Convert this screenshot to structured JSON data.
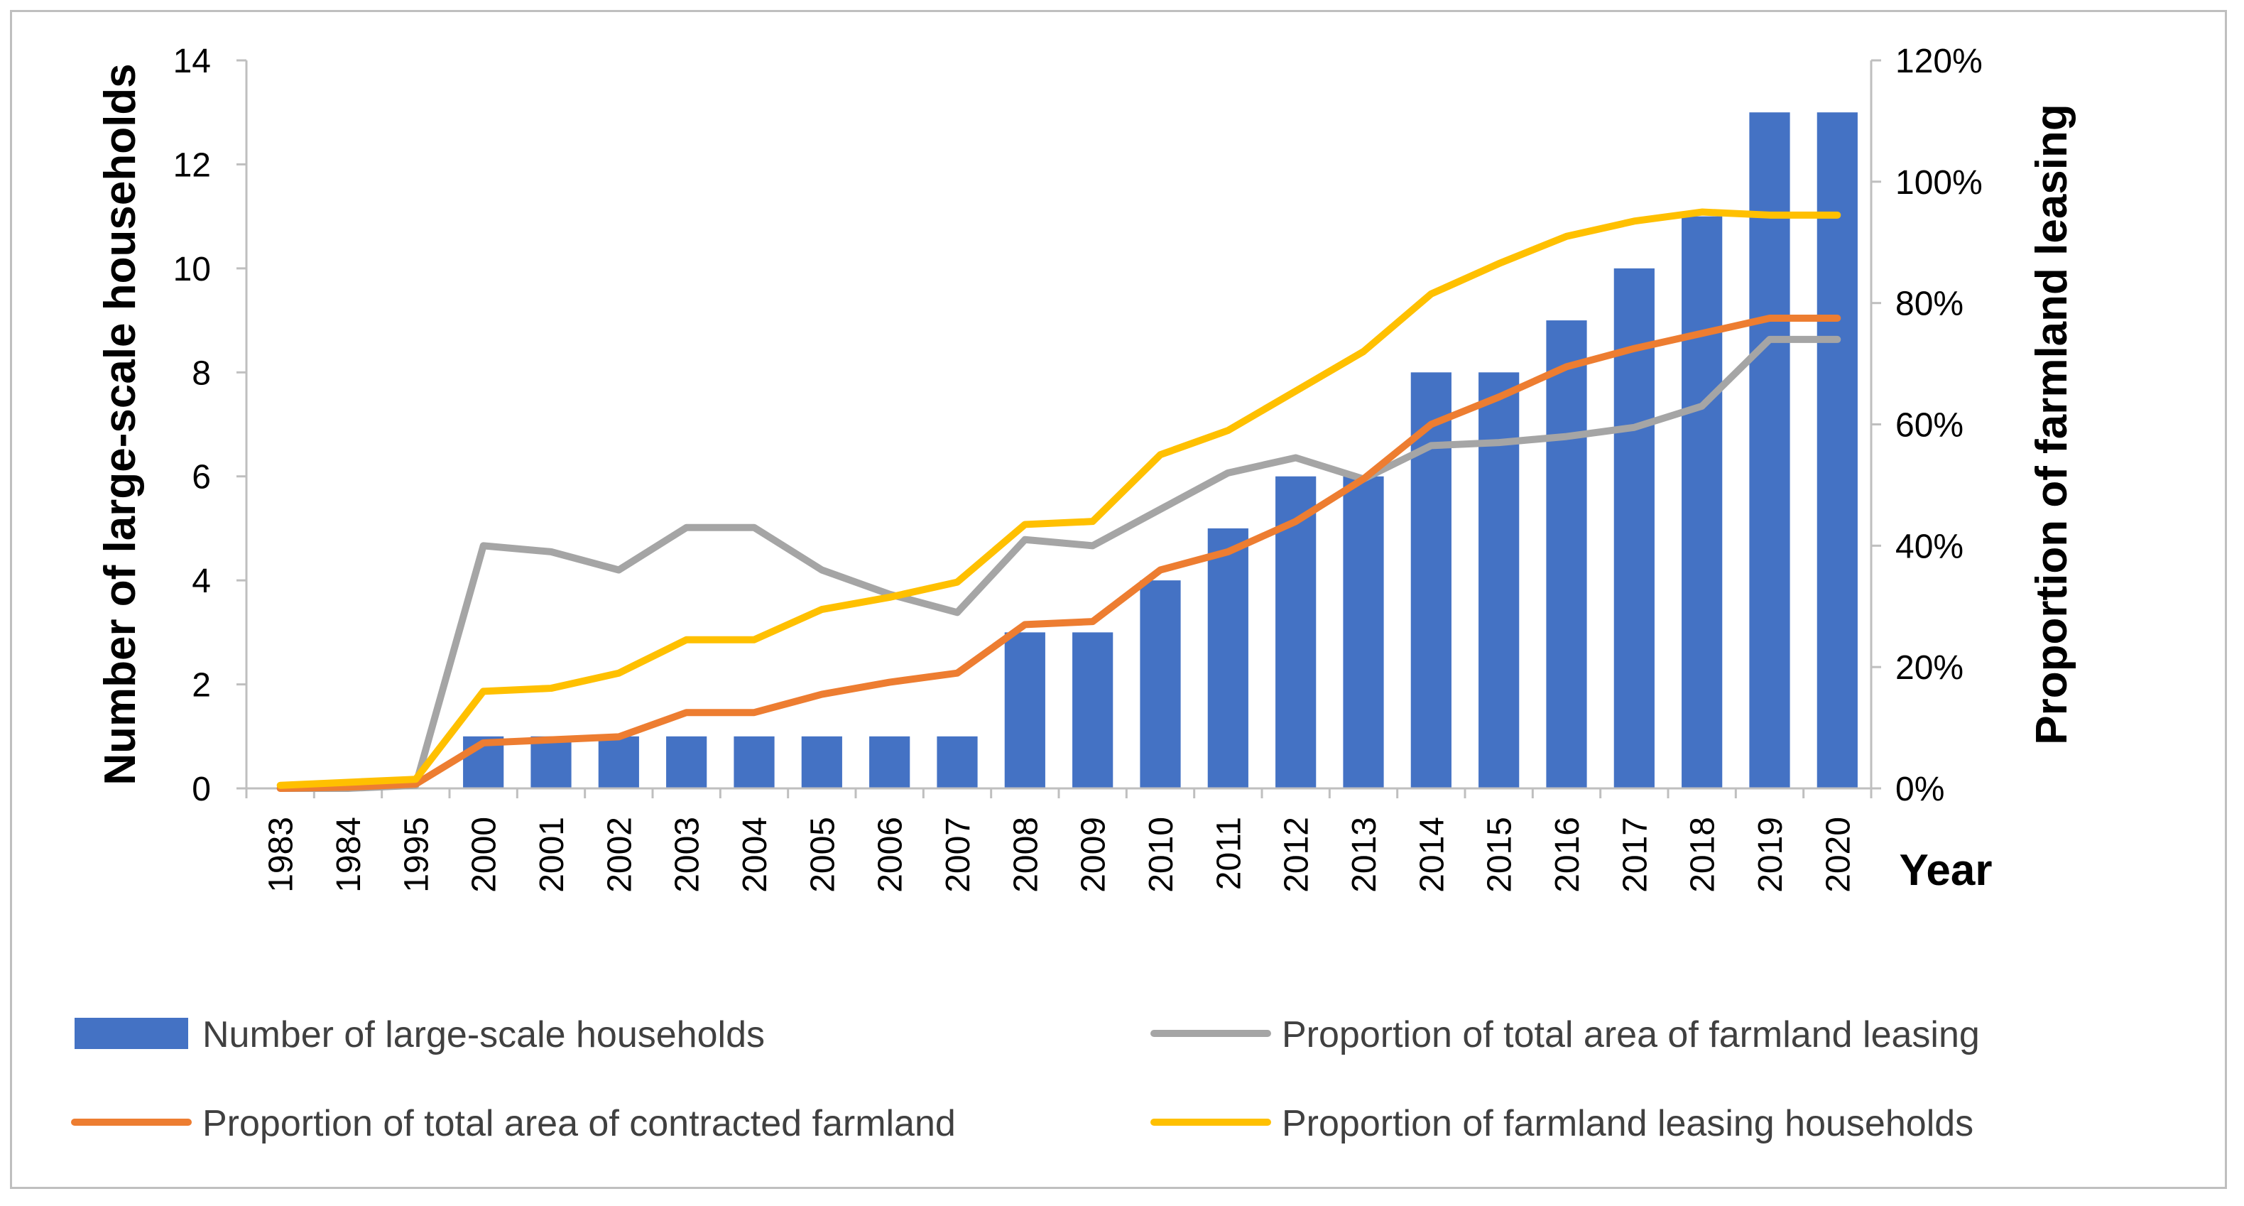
{
  "chart_data": {
    "type": "bar",
    "xlabel": "Year",
    "ylabel_left": "Number of large-scale households",
    "ylabel_right": "Proportion of farmland leasing",
    "categories": [
      "1983",
      "1984",
      "1995",
      "2000",
      "2001",
      "2002",
      "2003",
      "2004",
      "2005",
      "2006",
      "2007",
      "2008",
      "2009",
      "2010",
      "2011",
      "2012",
      "2013",
      "2014",
      "2015",
      "2016",
      "2017",
      "2018",
      "2019",
      "2020"
    ],
    "ylim_left": [
      0,
      14
    ],
    "yticks_left": [
      "0",
      "2",
      "4",
      "6",
      "8",
      "10",
      "12",
      "14"
    ],
    "ylim_right": [
      0,
      1.2
    ],
    "yticks_right": [
      "0%",
      "20%",
      "40%",
      "60%",
      "80%",
      "100%",
      "120%"
    ],
    "grid": false,
    "legend_position": "bottom",
    "series": [
      {
        "name": "Number of large-scale households",
        "kind": "bar",
        "axis": "left",
        "color": "#4472C4",
        "values": [
          0,
          0,
          0,
          1,
          1,
          1,
          1,
          1,
          1,
          1,
          1,
          3,
          3,
          4,
          5,
          6,
          6,
          8,
          8,
          9,
          10,
          11,
          13,
          13
        ]
      },
      {
        "name": "Proportion of total area of farmland leasing",
        "kind": "line",
        "axis": "right",
        "color": "#A5A5A5",
        "values": [
          0,
          0,
          0.005,
          0.4,
          0.39,
          0.36,
          0.43,
          0.43,
          0.36,
          0.32,
          0.29,
          0.41,
          0.4,
          0.46,
          0.52,
          0.545,
          0.51,
          0.565,
          0.57,
          0.58,
          0.595,
          0.63,
          0.74,
          0.74
        ]
      },
      {
        "name": "Proportion of total area of contracted farmland",
        "kind": "line",
        "axis": "right",
        "color": "#ED7D31",
        "values": [
          0,
          0.002,
          0.007,
          0.075,
          0.08,
          0.085,
          0.125,
          0.125,
          0.155,
          0.175,
          0.19,
          0.27,
          0.275,
          0.36,
          0.39,
          0.44,
          0.51,
          0.6,
          0.645,
          0.695,
          0.725,
          0.75,
          0.775,
          0.775
        ]
      },
      {
        "name": "Proportion of farmland leasing households",
        "kind": "line",
        "axis": "right",
        "color": "#FFC000",
        "values": [
          0.005,
          0.01,
          0.015,
          0.16,
          0.165,
          0.19,
          0.245,
          0.245,
          0.295,
          0.315,
          0.34,
          0.435,
          0.44,
          0.55,
          0.59,
          0.655,
          0.72,
          0.815,
          0.865,
          0.91,
          0.935,
          0.95,
          0.945,
          0.945
        ]
      }
    ]
  }
}
